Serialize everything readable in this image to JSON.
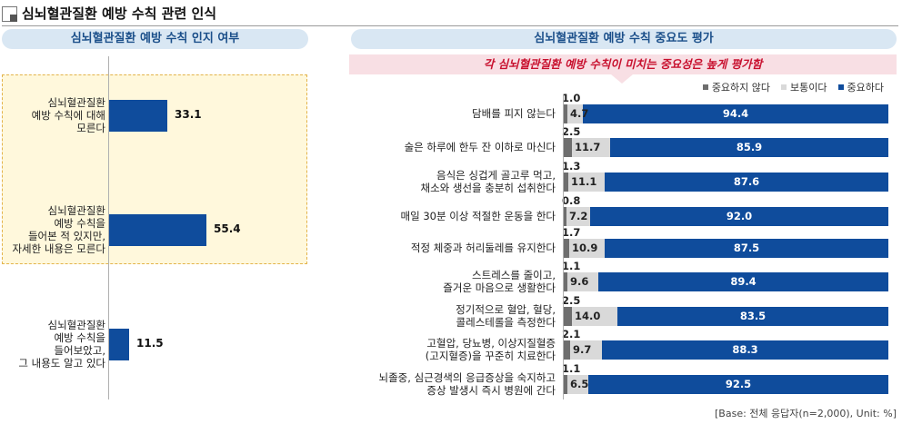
{
  "header": {
    "title": "심뇌혈관질환 예방 수칙 관련 인식"
  },
  "chart_data": [
    {
      "type": "bar",
      "orientation": "horizontal",
      "title": "심뇌혈관질환 예방 수칙 인지 여부",
      "unit": "%",
      "xlim": [
        0,
        100
      ],
      "categories": [
        "심뇌혈관질환 예방 수칙에 대해 모른다",
        "심뇌혈관질환 예방 수칙을 들어본 적 있지만, 자세한 내용은 모른다",
        "심뇌혈관질환 예방 수칙을 들어보았고, 그 내용도 알고 있다"
      ],
      "label_lines": [
        [
          "심뇌혈관질환",
          "예방 수칙에 대해",
          "모른다"
        ],
        [
          "심뇌혈관질환",
          "예방 수칙을",
          "들어본 적 있지만,",
          "자세한 내용은 모른다"
        ],
        [
          "심뇌혈관질환",
          "예방 수칙을",
          "들어보았고,",
          "그 내용도 알고 있다"
        ]
      ],
      "values": [
        33.1,
        55.4,
        11.5
      ],
      "highlighted": [
        0,
        1
      ],
      "bar_color": "#0f4c9c"
    },
    {
      "type": "bar",
      "orientation": "horizontal",
      "stacked": true,
      "title": "심뇌혈관질환 예방 수칙 중요도 평가",
      "annotation": "각 심뇌혈관질환 예방 수칙이 미치는 중요성은 높게 평가함",
      "legend_position": "top-right",
      "unit": "%",
      "xlim": [
        0,
        100
      ],
      "categories": [
        "담배를 피지 않는다",
        "술은 하루에 한두 잔 이하로 마신다",
        "음식은 싱겁게 골고루 먹고, 채소와 생선을 충분히 섭취한다",
        "매일 30분 이상 적절한 운동을 한다",
        "적정 체중과 허리둘레를 유지한다",
        "스트레스를 줄이고, 즐거운 마음으로 생활한다",
        "정기적으로 혈압, 혈당, 콜레스테롤을 측정한다",
        "고혈압, 당뇨병, 이상지질혈증(고지혈증)을 꾸준히 치료한다",
        "뇌졸중, 심근경색의 응급증상을 숙지하고 증상 발생시 즉시 병원에 간다"
      ],
      "label_lines": [
        [
          "담배를 피지 않는다"
        ],
        [
          "술은 하루에 한두 잔 이하로 마신다"
        ],
        [
          "음식은 싱겁게 골고루 먹고,",
          "채소와 생선을 충분히 섭취한다"
        ],
        [
          "매일 30분 이상 적절한 운동을 한다"
        ],
        [
          "적정 체중과 허리둘레를 유지한다"
        ],
        [
          "스트레스를 줄이고,",
          "즐거운 마음으로 생활한다"
        ],
        [
          "정기적으로 혈압, 혈당,",
          "콜레스테롤을 측정한다"
        ],
        [
          "고혈압, 당뇨병, 이상지질혈증",
          "(고지혈증)을 꾸준히 치료한다"
        ],
        [
          "뇌졸중, 심근경색의 응급증상을 숙지하고",
          "증상 발생시 즉시 병원에 간다"
        ]
      ],
      "series": [
        {
          "name": "중요하지 않다",
          "color": "#6e6e6e",
          "values": [
            1.0,
            2.5,
            1.3,
            0.8,
            1.7,
            1.1,
            2.5,
            2.1,
            1.1
          ]
        },
        {
          "name": "보통이다",
          "color": "#d9d9d9",
          "values": [
            4.7,
            11.7,
            11.1,
            7.2,
            10.9,
            9.6,
            14.0,
            9.7,
            6.5
          ]
        },
        {
          "name": "중요하다",
          "color": "#0f4c9c",
          "values": [
            94.4,
            85.9,
            87.6,
            92.0,
            87.5,
            89.4,
            83.5,
            88.3,
            92.5
          ]
        }
      ]
    }
  ],
  "footer": {
    "base_note": "[Base: 전체 응답자(n=2,000), Unit: %]"
  }
}
